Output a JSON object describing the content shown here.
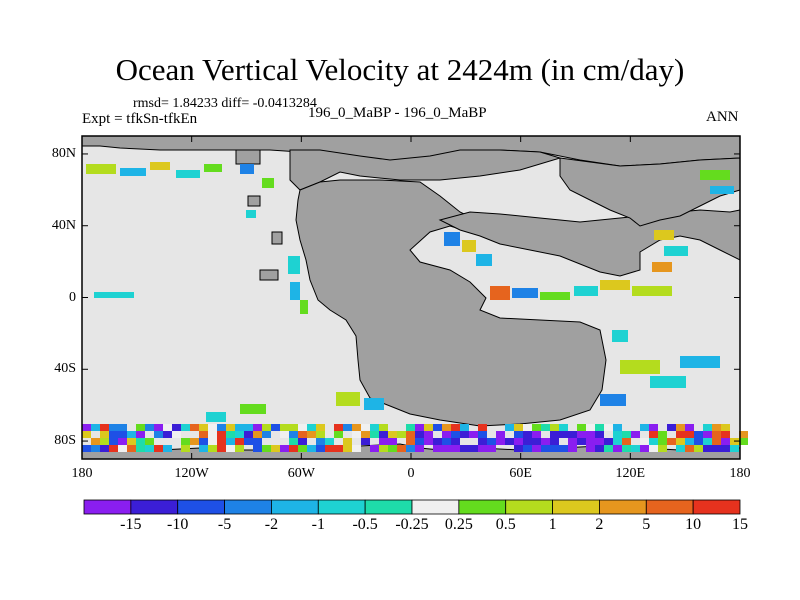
{
  "title": "Ocean Vertical Velocity at 2424m (in cm/day)",
  "stats": "rmsd= 1.84233  diff= -0.0413284",
  "experiment": "Expt = tfkSn-tfkEn",
  "cases": "196_0_MaBP - 196_0_MaBP",
  "season": "ANN",
  "map": {
    "lon_range": [
      -180,
      180
    ],
    "lat_range": [
      -90,
      90
    ],
    "lon_ticks": [
      {
        "value": -180,
        "label": "180"
      },
      {
        "value": -120,
        "label": "120W"
      },
      {
        "value": -60,
        "label": "60W"
      },
      {
        "value": 0,
        "label": "0"
      },
      {
        "value": 60,
        "label": "60E"
      },
      {
        "value": 120,
        "label": "120E"
      },
      {
        "value": 180,
        "label": "180"
      }
    ],
    "lat_ticks": [
      {
        "value": 80,
        "label": "80N"
      },
      {
        "value": 40,
        "label": "40N"
      },
      {
        "value": 0,
        "label": "0"
      },
      {
        "value": -40,
        "label": "40S"
      },
      {
        "value": -80,
        "label": "80S"
      }
    ],
    "land_color": "#a0a0a0",
    "neutral_color": "#e6e6e6"
  },
  "colorbar": {
    "labels": [
      "-15",
      "-10",
      "-5",
      "-2",
      "-1",
      "-0.5",
      "-0.25",
      "0.25",
      "0.5",
      "1",
      "2",
      "5",
      "10",
      "15"
    ],
    "colors": [
      "#8a1ef0",
      "#3b1ed6",
      "#1e50e6",
      "#1e82e6",
      "#1eb4e6",
      "#1ed2d2",
      "#1edcaa",
      "#f0f0f0",
      "#64dc1e",
      "#b4dc1e",
      "#dcc81e",
      "#e6961e",
      "#e6641e",
      "#e6321e"
    ]
  }
}
